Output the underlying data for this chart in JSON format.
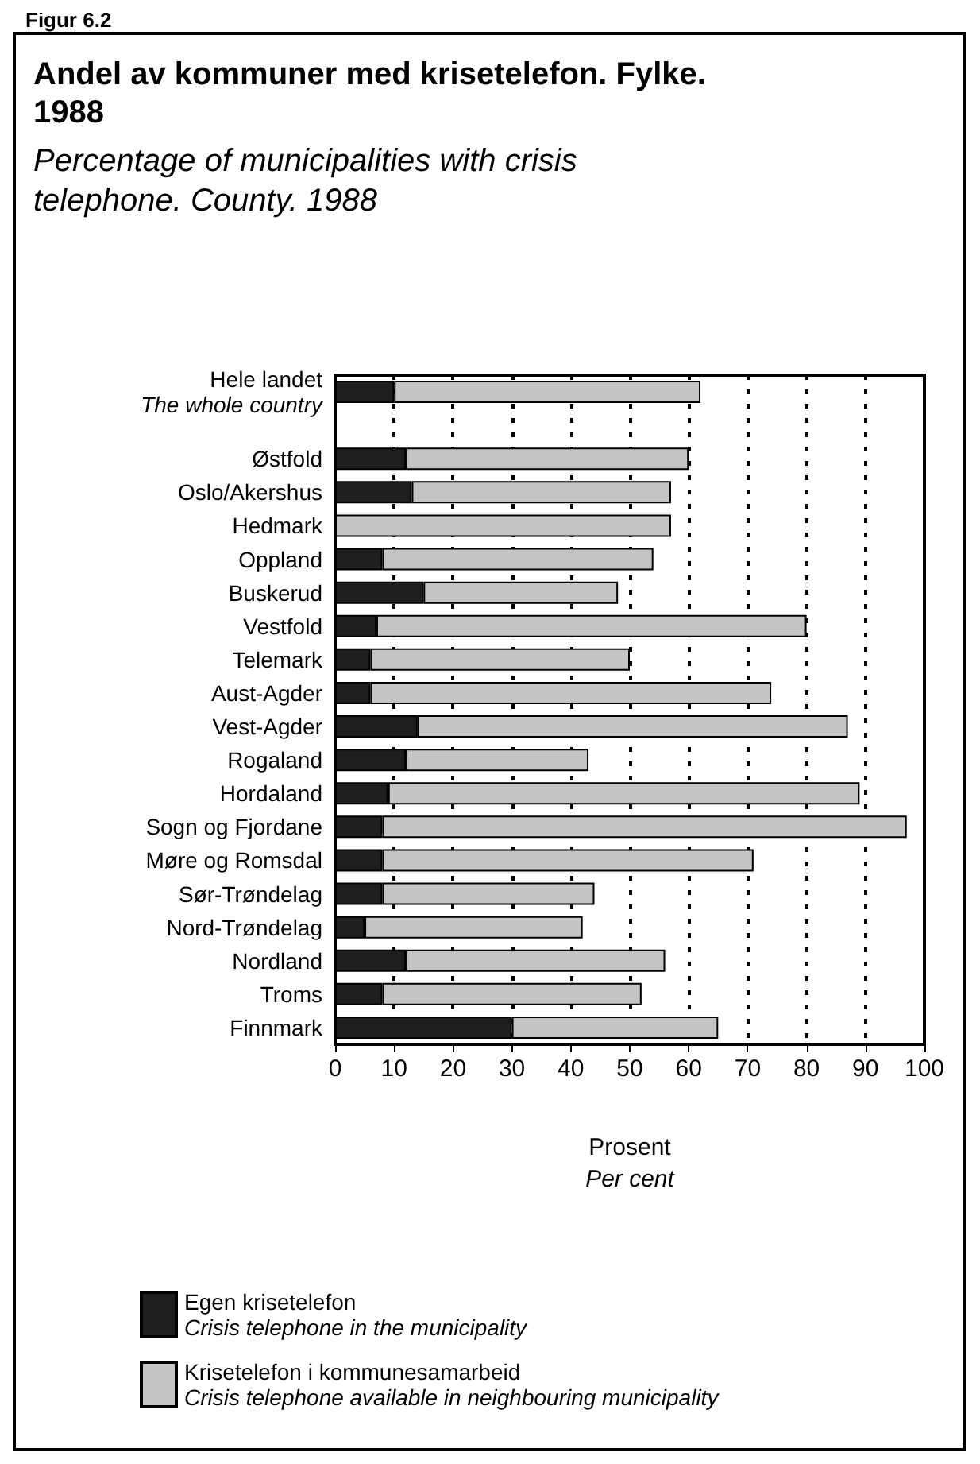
{
  "chart_data": {
    "type": "bar",
    "orientation": "horizontal",
    "stacked": true,
    "title": "Andel av kommuner med krisetelefon. Fylke. 1988",
    "subtitle": "Percentage of municipalities with crisis telephone. County. 1988",
    "annotations": [
      "Figur 6.2"
    ],
    "xlabel": "Prosent\nPer cent",
    "categories": [
      "Hele landet\nThe whole country",
      null,
      "Østfold",
      "Oslo/Akershus",
      "Hedmark",
      "Oppland",
      "Buskerud",
      "Vestfold",
      "Telemark",
      "Aust-Agder",
      "Vest-Agder",
      "Rogaland",
      "Hordaland",
      "Sogn og Fjordane",
      "Møre og Romsdal",
      "Sør-Trøndelag",
      "Nord-Trøndelag",
      "Nordland",
      "Troms",
      "Finnmark"
    ],
    "series": [
      {
        "name": "Egen krisetelefon\nCrisis telephone in the municipality",
        "color": "#1e1e1e",
        "values": [
          10,
          null,
          12,
          13,
          0,
          8,
          15,
          7,
          6,
          6,
          14,
          12,
          9,
          8,
          8,
          8,
          5,
          12,
          8,
          30
        ]
      },
      {
        "name": "Krisetelefon i kommunesamarbeid\nCrisis telephone available in neighbouring municipality",
        "color": "#c4c4c4",
        "values": [
          52,
          null,
          48,
          44,
          57,
          46,
          33,
          73,
          44,
          68,
          73,
          31,
          80,
          89,
          63,
          36,
          37,
          44,
          44,
          35
        ]
      }
    ],
    "xlim": [
      0,
      100
    ],
    "xticks": [
      0,
      10,
      20,
      30,
      40,
      50,
      60,
      70,
      80,
      90,
      100
    ],
    "grid": "x",
    "legend": "bottom left"
  }
}
